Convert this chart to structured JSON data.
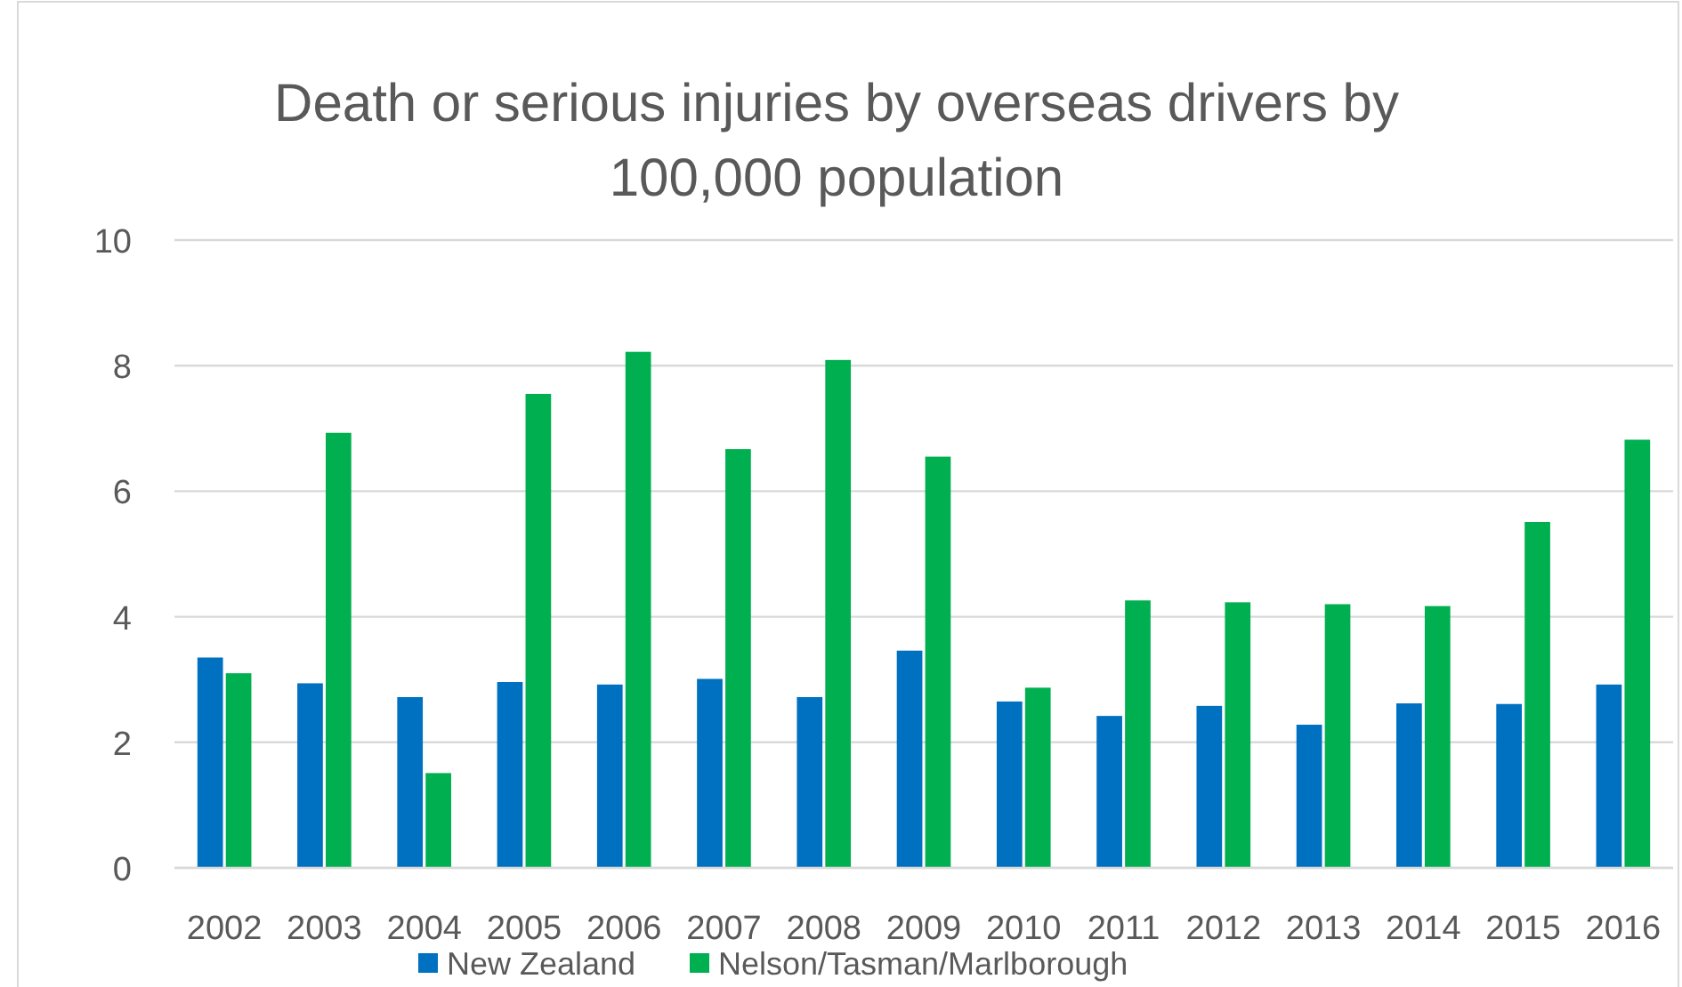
{
  "chart_data": {
    "type": "bar",
    "title": "Death or serious injuries by overseas drivers by 100,000 population",
    "categories": [
      "2002",
      "2003",
      "2004",
      "2005",
      "2006",
      "2007",
      "2008",
      "2009",
      "2010",
      "2011",
      "2012",
      "2013",
      "2014",
      "2015",
      "2016"
    ],
    "series": [
      {
        "name": "New Zealand",
        "color": "#0070c0",
        "values": [
          3.35,
          2.94,
          2.72,
          2.96,
          2.92,
          3.01,
          2.72,
          3.46,
          2.65,
          2.42,
          2.58,
          2.28,
          2.62,
          2.61,
          2.92
        ]
      },
      {
        "name": "Nelson/Tasman/Marlborough",
        "color": "#00b050",
        "values": [
          3.1,
          6.93,
          1.51,
          7.55,
          8.22,
          6.67,
          8.09,
          6.55,
          2.87,
          4.26,
          4.23,
          4.2,
          4.17,
          5.51,
          6.82
        ]
      }
    ],
    "ylim": [
      0,
      10
    ],
    "yticks": [
      0,
      2,
      4,
      6,
      8,
      10
    ],
    "grid": "y",
    "legend": "bottom"
  }
}
